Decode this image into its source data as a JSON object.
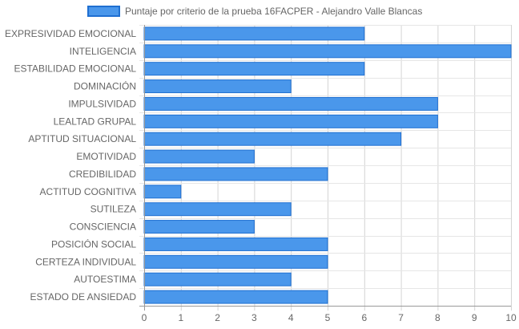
{
  "chart_data": {
    "type": "bar",
    "orientation": "horizontal",
    "title": "",
    "xlabel": "",
    "ylabel": "",
    "xlim": [
      0,
      10
    ],
    "x_ticks": [
      0,
      1,
      2,
      3,
      4,
      5,
      6,
      7,
      8,
      9,
      10
    ],
    "grid": true,
    "legend_position": "top",
    "categories": [
      "EXPRESIVIDAD EMOCIONAL",
      "INTELIGENCIA",
      "ESTABILIDAD EMOCIONAL",
      "DOMINACIÓN",
      "IMPULSIVIDAD",
      "LEALTAD GRUPAL",
      "APTITUD SITUACIONAL",
      "EMOTIVIDAD",
      "CREDIBILIDAD",
      "ACTITUD COGNITIVA",
      "SUTILEZA",
      "CONSCIENCIA",
      "POSICIÓN SOCIAL",
      "CERTEZA INDIVIDUAL",
      "AUTOESTIMA",
      "ESTADO DE ANSIEDAD"
    ],
    "series": [
      {
        "name": "Puntaje por criterio de la prueba 16FACPER - Alejandro Valle Blancas",
        "values": [
          6,
          10,
          6,
          4,
          8,
          8,
          7,
          3,
          5,
          1,
          4,
          3,
          5,
          5,
          4,
          5
        ],
        "color": "#4a97eb",
        "border_color": "#1f6fd1"
      }
    ]
  }
}
